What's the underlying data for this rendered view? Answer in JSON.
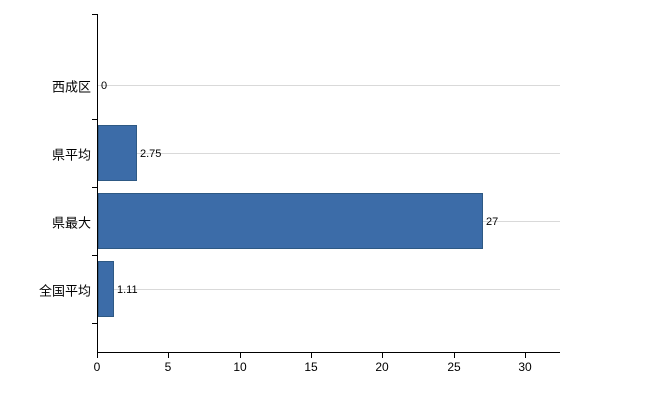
{
  "chart_data": {
    "type": "bar",
    "orientation": "horizontal",
    "title": "",
    "categories": [
      "西成区",
      "県平均",
      "県最大",
      "全国平均"
    ],
    "values": [
      0,
      2.75,
      27,
      1.11
    ],
    "value_labels": [
      "0",
      "2.75",
      "27",
      "1.11"
    ],
    "x_ticks": [
      0,
      5,
      10,
      15,
      20,
      25,
      30
    ],
    "x_tick_labels": [
      "0",
      "5",
      "10",
      "15",
      "20",
      "25",
      "30"
    ],
    "xlim": [
      0,
      32.5
    ],
    "legend": "none",
    "grid": "horizontal-category-gridlines",
    "bar_color": "#3c6ca8",
    "bar_border_color": "#2e5984",
    "gridline_color": "#d9d9d9",
    "axis_color": "#000000",
    "background_color": "#ffffff"
  }
}
